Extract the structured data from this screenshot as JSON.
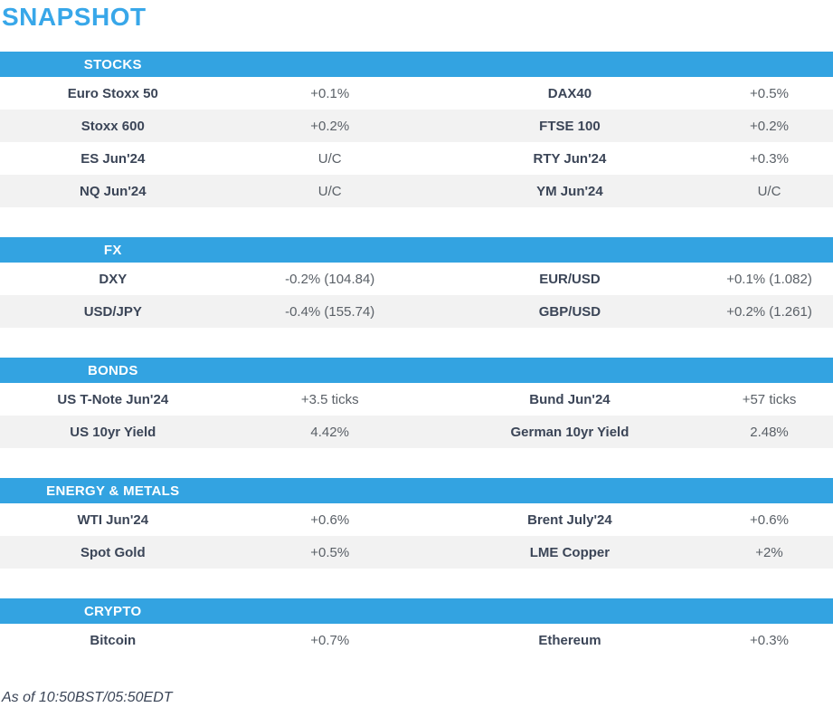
{
  "page_title": "SNAPSHOT",
  "footer_note": "As of 10:50BST/05:50EDT",
  "colors": {
    "accent_blue": "#33a3e1",
    "title_blue": "#38a7e9",
    "row_stripe": "#f2f2f2",
    "name_text": "#3b4557",
    "value_text": "#5a6067",
    "header_text": "#ffffff"
  },
  "sections": [
    {
      "title": "STOCKS",
      "rows": [
        {
          "l_name": "Euro Stoxx 50",
          "l_value": "+0.1%",
          "r_name": "DAX40",
          "r_value": "+0.5%"
        },
        {
          "l_name": "Stoxx 600",
          "l_value": "+0.2%",
          "r_name": "FTSE 100",
          "r_value": "+0.2%"
        },
        {
          "l_name": "ES Jun'24",
          "l_value": "U/C",
          "r_name": "RTY Jun'24",
          "r_value": "+0.3%"
        },
        {
          "l_name": "NQ Jun'24",
          "l_value": "U/C",
          "r_name": "YM Jun'24",
          "r_value": "U/C"
        }
      ]
    },
    {
      "title": "FX",
      "rows": [
        {
          "l_name": "DXY",
          "l_value": "-0.2% (104.84)",
          "r_name": "EUR/USD",
          "r_value": "+0.1% (1.082)"
        },
        {
          "l_name": "USD/JPY",
          "l_value": "-0.4% (155.74)",
          "r_name": "GBP/USD",
          "r_value": "+0.2% (1.261)"
        }
      ]
    },
    {
      "title": "BONDS",
      "rows": [
        {
          "l_name": "US T-Note Jun'24",
          "l_value": "+3.5 ticks",
          "r_name": "Bund Jun'24",
          "r_value": "+57 ticks"
        },
        {
          "l_name": "US 10yr Yield",
          "l_value": "4.42%",
          "r_name": "German 10yr Yield",
          "r_value": "2.48%"
        }
      ]
    },
    {
      "title": "ENERGY & METALS",
      "rows": [
        {
          "l_name": "WTI Jun'24",
          "l_value": "+0.6%",
          "r_name": "Brent July'24",
          "r_value": "+0.6%"
        },
        {
          "l_name": "Spot Gold",
          "l_value": "+0.5%",
          "r_name": "LME Copper",
          "r_value": "+2%"
        }
      ]
    },
    {
      "title": "CRYPTO",
      "rows": [
        {
          "l_name": "Bitcoin",
          "l_value": "+0.7%",
          "r_name": "Ethereum",
          "r_value": "+0.3%"
        }
      ]
    }
  ]
}
